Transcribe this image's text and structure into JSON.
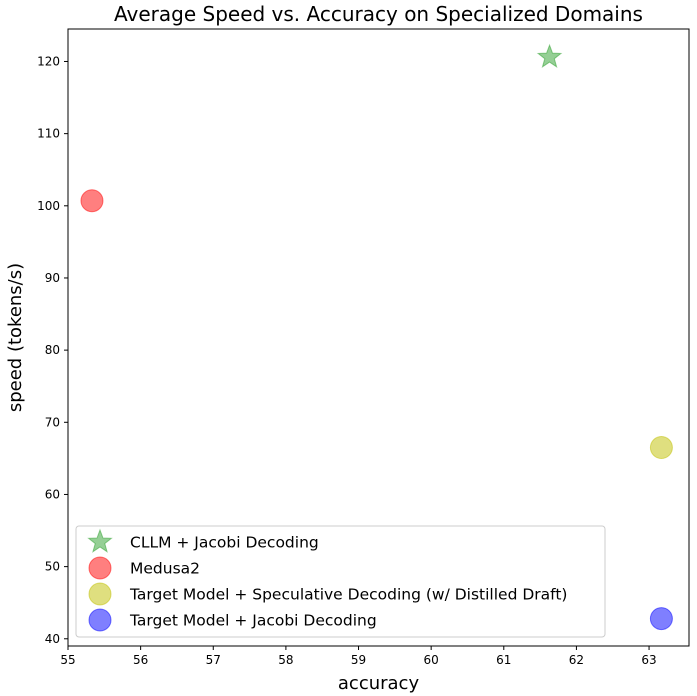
{
  "chart_data": {
    "type": "scatter",
    "title": "Average Speed vs. Accuracy on Specialized Domains",
    "xlabel": "accuracy",
    "ylabel": "speed (tokens/s)",
    "xlim": [
      55.0,
      63.55
    ],
    "ylim": [
      39.0,
      124.5
    ],
    "xticks": [
      55,
      56,
      57,
      58,
      59,
      60,
      61,
      62,
      63
    ],
    "yticks": [
      40,
      50,
      60,
      70,
      80,
      90,
      100,
      110,
      120
    ],
    "grid": false,
    "legend_position": "bottom-left",
    "series": [
      {
        "name": "CLLM + Jacobi Decoding",
        "marker": "star",
        "color": "#2ca02c",
        "points": [
          {
            "x": 61.63,
            "y": 120.6
          }
        ]
      },
      {
        "name": "Medusa2",
        "marker": "circle",
        "color": "#ff0000",
        "points": [
          {
            "x": 55.33,
            "y": 100.7
          }
        ]
      },
      {
        "name": "Target Model + Speculative Decoding (w/ Distilled Draft)",
        "marker": "circle",
        "color": "#bfbf00",
        "points": [
          {
            "x": 63.17,
            "y": 66.5
          }
        ]
      },
      {
        "name": "Target Model + Jacobi Decoding",
        "marker": "circle",
        "color": "#0000ff",
        "points": [
          {
            "x": 63.17,
            "y": 42.8
          }
        ]
      }
    ]
  }
}
